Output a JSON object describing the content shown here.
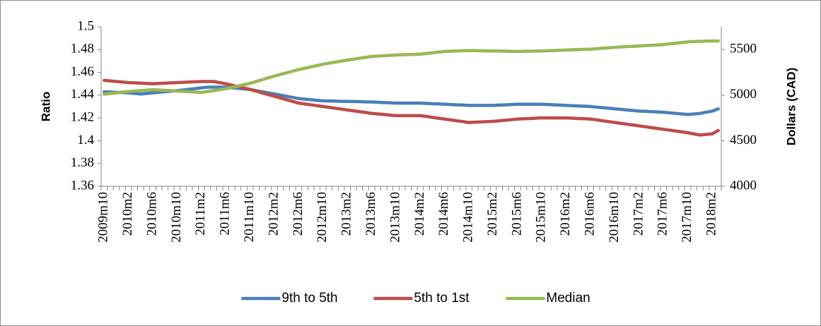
{
  "chart_data": {
    "type": "line",
    "categories": [
      "2009m10",
      null,
      null,
      null,
      "2010m2",
      null,
      null,
      null,
      "2010m6",
      null,
      null,
      null,
      "2010m10",
      null,
      null,
      null,
      "2011m2",
      null,
      null,
      null,
      "2011m6",
      null,
      null,
      null,
      "2011m10",
      null,
      null,
      null,
      "2012m2",
      null,
      null,
      null,
      "2012m6",
      null,
      null,
      null,
      "2012m10",
      null,
      null,
      null,
      "2013m2",
      null,
      null,
      null,
      "2013m6",
      null,
      null,
      null,
      "2013m10",
      null,
      null,
      null,
      "2014m2",
      null,
      null,
      null,
      "2014m6",
      null,
      null,
      null,
      "2014m10",
      null,
      null,
      null,
      "2015m2",
      null,
      null,
      null,
      "2015m6",
      null,
      null,
      null,
      "2015m10",
      null,
      null,
      null,
      "2016m2",
      null,
      null,
      null,
      "2016m6",
      null,
      null,
      null,
      "2016m10",
      null,
      null,
      null,
      "2017m2",
      null,
      null,
      null,
      "2017m6",
      null,
      null,
      null,
      "2017m10",
      null,
      null,
      null,
      "2018m2",
      null
    ],
    "y_label": "Ratio",
    "y2_label": "Dollars (CAD)",
    "ylim": [
      1.36,
      1.5
    ],
    "yticks": [
      1.36,
      1.38,
      1.4,
      1.42,
      1.44,
      1.46,
      1.48,
      1.5
    ],
    "y2lim": [
      4000,
      5750
    ],
    "y2ticks": [
      4000,
      4500,
      5000,
      5500
    ],
    "legend": "bottom",
    "series": [
      {
        "name": "9th to 5th",
        "color": "#4a7ebb",
        "values": [
          1.443,
          1.4428,
          1.4425,
          1.4423,
          1.442,
          1.4415,
          1.441,
          1.4415,
          1.442,
          1.4425,
          1.443,
          1.4435,
          1.444,
          1.4446,
          1.4452,
          1.4458,
          1.4464,
          1.447,
          1.447,
          1.447,
          1.447,
          1.4465,
          1.446,
          1.4455,
          1.445,
          1.444,
          1.443,
          1.442,
          1.441,
          1.44,
          1.439,
          1.438,
          1.437,
          1.4365,
          1.436,
          1.4355,
          1.435,
          1.4349,
          1.4348,
          1.4346,
          1.4345,
          1.4344,
          1.4343,
          1.4341,
          1.434,
          1.4338,
          1.4335,
          1.4333,
          1.433,
          1.433,
          1.433,
          1.433,
          1.433,
          1.4328,
          1.4325,
          1.4323,
          1.432,
          1.4318,
          1.4315,
          1.4313,
          1.431,
          1.431,
          1.431,
          1.431,
          1.431,
          1.4313,
          1.4315,
          1.4318,
          1.432,
          1.432,
          1.432,
          1.432,
          1.432,
          1.4318,
          1.4315,
          1.4313,
          1.431,
          1.4308,
          1.4305,
          1.4303,
          1.43,
          1.4295,
          1.429,
          1.4285,
          1.428,
          1.4275,
          1.427,
          1.4265,
          1.426,
          1.4258,
          1.4255,
          1.4253,
          1.425,
          1.4245,
          1.424,
          1.4235,
          1.423,
          1.4235,
          1.424,
          1.425,
          1.426,
          1.428
        ]
      },
      {
        "name": "5th to 1st",
        "color": "#be4b48",
        "values": [
          1.453,
          1.4525,
          1.452,
          1.4515,
          1.451,
          1.4508,
          1.4505,
          1.4503,
          1.45,
          1.4503,
          1.4505,
          1.4508,
          1.451,
          1.4513,
          1.4515,
          1.4518,
          1.452,
          1.452,
          1.452,
          1.451,
          1.45,
          1.4488,
          1.4475,
          1.4463,
          1.445,
          1.4435,
          1.442,
          1.4405,
          1.439,
          1.4375,
          1.436,
          1.4345,
          1.433,
          1.4323,
          1.4315,
          1.4308,
          1.43,
          1.4293,
          1.4285,
          1.4278,
          1.427,
          1.4263,
          1.4255,
          1.4248,
          1.424,
          1.4235,
          1.423,
          1.4225,
          1.422,
          1.422,
          1.422,
          1.422,
          1.422,
          1.4213,
          1.4205,
          1.4198,
          1.419,
          1.4183,
          1.4175,
          1.4168,
          1.416,
          1.4163,
          1.4165,
          1.4168,
          1.417,
          1.4175,
          1.418,
          1.4185,
          1.419,
          1.4193,
          1.4195,
          1.4198,
          1.42,
          1.42,
          1.42,
          1.42,
          1.42,
          1.4198,
          1.4195,
          1.4193,
          1.419,
          1.4183,
          1.4175,
          1.4168,
          1.416,
          1.4153,
          1.4145,
          1.4138,
          1.413,
          1.4123,
          1.4115,
          1.4108,
          1.41,
          1.4093,
          1.4085,
          1.4078,
          1.407,
          1.406,
          1.405,
          1.4055,
          1.406,
          1.409
        ]
      },
      {
        "name": "Median",
        "color": "#98b954",
        "axis": "y2",
        "values": [
          5010,
          5018,
          5025,
          5033,
          5040,
          5045,
          5050,
          5055,
          5060,
          5056,
          5053,
          5049,
          5045,
          5041,
          5038,
          5034,
          5030,
          5040,
          5050,
          5060,
          5070,
          5085,
          5100,
          5115,
          5130,
          5150,
          5170,
          5190,
          5210,
          5228,
          5245,
          5263,
          5280,
          5295,
          5310,
          5325,
          5340,
          5351,
          5363,
          5374,
          5385,
          5395,
          5405,
          5415,
          5425,
          5429,
          5433,
          5436,
          5440,
          5443,
          5445,
          5448,
          5450,
          5458,
          5465,
          5473,
          5480,
          5483,
          5485,
          5488,
          5490,
          5489,
          5488,
          5486,
          5485,
          5484,
          5483,
          5481,
          5480,
          5481,
          5483,
          5484,
          5485,
          5488,
          5490,
          5493,
          5495,
          5498,
          5500,
          5503,
          5505,
          5510,
          5515,
          5520,
          5525,
          5529,
          5533,
          5536,
          5540,
          5544,
          5548,
          5551,
          5555,
          5563,
          5570,
          5578,
          5585,
          5588,
          5590,
          5593,
          5595,
          5595
        ]
      }
    ]
  }
}
